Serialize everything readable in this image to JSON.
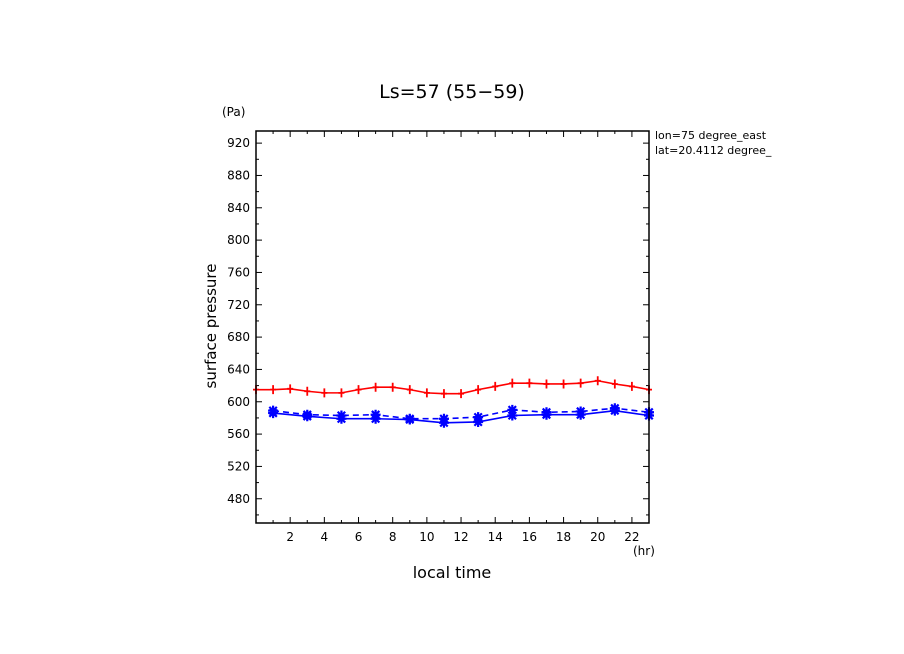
{
  "chart_data": {
    "type": "line",
    "title": "Ls=57 (55−59)",
    "xlabel": "local time",
    "ylabel": "surface pressure",
    "x_unit": "(hr)",
    "y_unit": "(Pa)",
    "annotations": [
      "lon=75 degree_east",
      "lat=20.4112 degree_"
    ],
    "xlim": [
      0,
      23
    ],
    "ylim": [
      450,
      935
    ],
    "x_ticks": [
      2,
      4,
      6,
      8,
      10,
      12,
      14,
      16,
      18,
      20,
      22
    ],
    "y_ticks": [
      480,
      520,
      560,
      600,
      640,
      680,
      720,
      760,
      800,
      840,
      880,
      920
    ],
    "x": [
      0,
      1,
      3,
      5,
      7,
      9,
      11,
      13,
      15,
      17,
      19,
      21,
      23
    ],
    "series": [
      {
        "color": "#ff0000",
        "style": "solid",
        "marker": "plus",
        "x": [
          0,
          1,
          2,
          3,
          4,
          5,
          6,
          7,
          8,
          9,
          10,
          11,
          12,
          13,
          14,
          15,
          16,
          17,
          18,
          19,
          20,
          21,
          22,
          23
        ],
        "values": [
          615,
          615,
          616,
          613,
          611,
          611,
          615,
          618,
          618,
          615,
          611,
          610,
          610,
          615,
          619,
          623,
          623,
          622,
          622,
          623,
          626,
          622,
          619,
          615
        ]
      },
      {
        "color": "#0000ff",
        "style": "solid",
        "marker": "star",
        "x": [
          1,
          3,
          5,
          7,
          9,
          11,
          13,
          15,
          17,
          19,
          21,
          23
        ],
        "values": [
          586,
          582,
          579,
          579,
          578,
          574,
          575,
          583,
          584,
          584,
          589,
          583
        ]
      },
      {
        "color": "#0000ff",
        "style": "dashed",
        "marker": "star",
        "x": [
          1,
          3,
          5,
          7,
          9,
          11,
          13,
          15,
          17,
          19,
          21,
          23
        ],
        "values": [
          589,
          584,
          583,
          584,
          579,
          579,
          581,
          590,
          587,
          588,
          592,
          587
        ]
      }
    ]
  }
}
